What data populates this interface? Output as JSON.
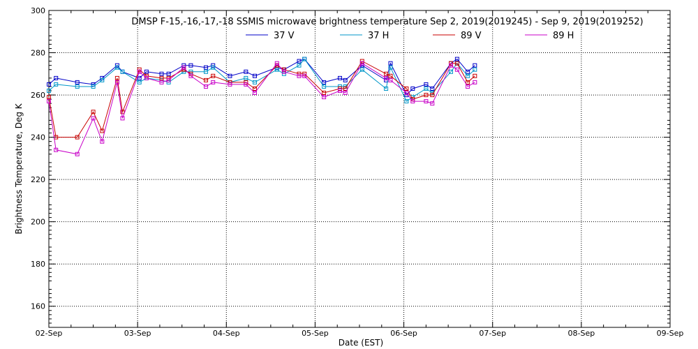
{
  "chart_data": {
    "type": "line",
    "title": "DMSP F-15,-16,-17,-18 SSMIS microwave brightness temperature Sep  2, 2019(2019245) - Sep  9, 2019(2019252)",
    "xlabel": "Date (EST)",
    "ylabel": "Brightness Temperature, Deg K",
    "xlim": [
      0,
      7
    ],
    "ylim": [
      150,
      300
    ],
    "x_ticks": [
      0,
      1,
      2,
      3,
      4,
      5,
      6,
      7
    ],
    "x_tick_labels": [
      "02-Sep",
      "03-Sep",
      "04-Sep",
      "05-Sep",
      "06-Sep",
      "07-Sep",
      "08-Sep",
      "09-Sep"
    ],
    "y_ticks": [
      160,
      180,
      200,
      220,
      240,
      260,
      280,
      300
    ],
    "y_tick_labels": [
      "160",
      "180",
      "200",
      "220",
      "240",
      "260",
      "280",
      "300"
    ],
    "grid": true,
    "legend_position": "top",
    "x": [
      0.0,
      0.08,
      0.32,
      0.5,
      0.6,
      0.77,
      0.83,
      1.02,
      1.1,
      1.27,
      1.35,
      1.52,
      1.6,
      1.77,
      1.85,
      2.04,
      2.22,
      2.32,
      2.57,
      2.65,
      2.82,
      2.88,
      3.1,
      3.28,
      3.34,
      3.53,
      3.8,
      3.85,
      4.03,
      4.1,
      4.25,
      4.32,
      4.53,
      4.6,
      4.72,
      4.8
    ],
    "series": [
      {
        "name": "37 V",
        "color": "#0000c8",
        "values": [
          265,
          268,
          266,
          265,
          268,
          274,
          271,
          268,
          271,
          270,
          270,
          274,
          274,
          273,
          274,
          269,
          271,
          269,
          273,
          272,
          276,
          277,
          266,
          268,
          267,
          274,
          267,
          275,
          260,
          263,
          265,
          263,
          275,
          277,
          271,
          274
        ]
      },
      {
        "name": "37 H",
        "color": "#0096c8",
        "values": [
          262,
          265,
          264,
          264,
          267,
          273,
          271,
          266,
          268,
          267,
          266,
          271,
          271,
          271,
          273,
          266,
          268,
          266,
          272,
          270,
          274,
          277,
          264,
          264,
          264,
          272,
          263,
          273,
          257,
          259,
          263,
          261,
          271,
          275,
          269,
          272
        ]
      },
      {
        "name": "89 V",
        "color": "#c80000",
        "values": [
          259,
          240,
          240,
          252,
          243,
          268,
          252,
          272,
          269,
          268,
          268,
          272,
          270,
          267,
          269,
          266,
          266,
          263,
          274,
          272,
          270,
          270,
          261,
          263,
          263,
          276,
          270,
          269,
          263,
          258,
          260,
          260,
          275,
          275,
          266,
          269
        ]
      },
      {
        "name": "89 H",
        "color": "#c800c8",
        "values": [
          257,
          234,
          232,
          249,
          238,
          266,
          249,
          271,
          268,
          266,
          267,
          273,
          269,
          264,
          266,
          265,
          265,
          261,
          275,
          271,
          269,
          269,
          259,
          262,
          261,
          275,
          268,
          267,
          261,
          257,
          257,
          256,
          274,
          272,
          264,
          266
        ]
      }
    ]
  }
}
